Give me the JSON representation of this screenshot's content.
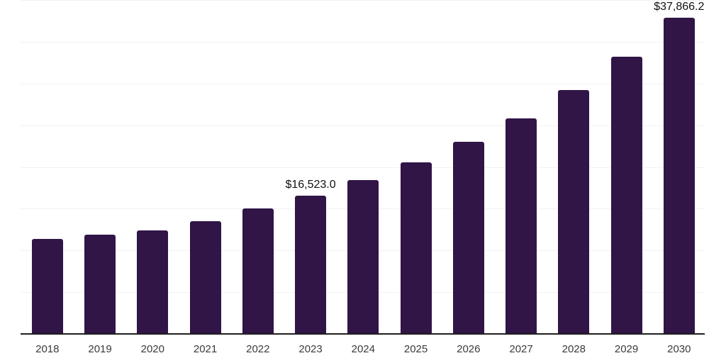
{
  "chart": {
    "background_color": "#ffffff",
    "bar_color": "#301546",
    "axis_color": "#1f1f1f",
    "gridline_color": "#f2f2f2",
    "tick_label_color": "#3a3a3a",
    "data_label_color": "#111111"
  },
  "chart_data": {
    "type": "bar",
    "title": "",
    "xlabel": "",
    "ylabel": "",
    "categories": [
      "2018",
      "2019",
      "2020",
      "2021",
      "2022",
      "2023",
      "2024",
      "2025",
      "2026",
      "2027",
      "2028",
      "2029",
      "2030"
    ],
    "values": [
      11400,
      11850,
      12400,
      13500,
      15000,
      16523.0,
      18400,
      20550,
      23000,
      25850,
      29200,
      33200,
      37866.2
    ],
    "data_labels": [
      {
        "category": "2023",
        "text": "$16,523.0"
      },
      {
        "category": "2030",
        "text": "$37,866.2"
      }
    ],
    "ylim": [
      0,
      40000
    ],
    "grid_step": 5000,
    "grid": "horizontal-only",
    "y_tick_labels_shown": false,
    "legend": "none"
  }
}
